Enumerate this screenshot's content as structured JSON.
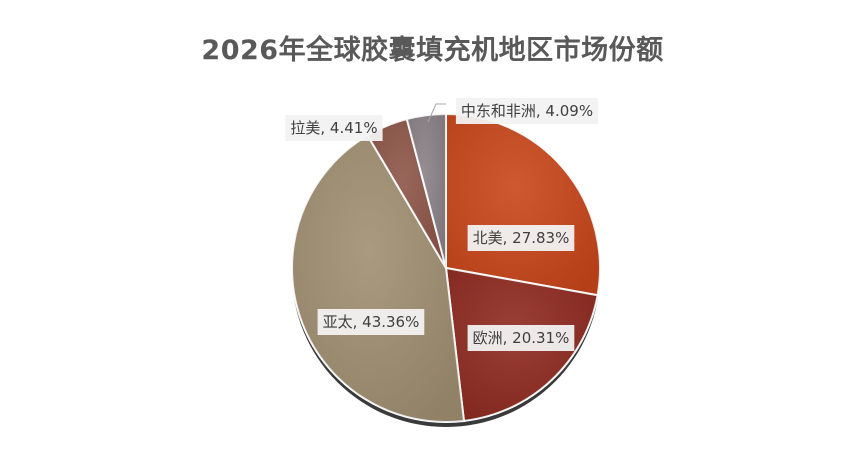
{
  "chart_data": {
    "type": "pie",
    "title": "2026年全球胶囊填充机地区市场份额",
    "categories": [
      "北美",
      "欧洲",
      "亚太",
      "拉美",
      "中东和非洲"
    ],
    "values": [
      27.83,
      20.31,
      43.36,
      4.41,
      4.09
    ],
    "labels": [
      "北美, 27.83%",
      "欧洲, 20.31%",
      "亚太, 43.36%",
      "拉美, 4.41%",
      "中东和非洲, 4.09%"
    ],
    "colors": [
      "#c9461a",
      "#8f2a20",
      "#a08f72",
      "#8e5548",
      "#8a8186"
    ],
    "legend": "none"
  }
}
